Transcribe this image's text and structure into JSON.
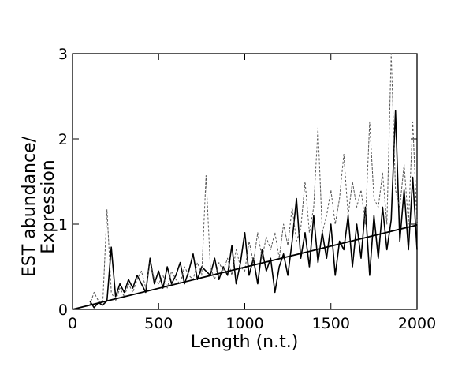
{
  "chart_data": {
    "type": "line",
    "x_label": "Length (n.t.)",
    "y_label_lines": [
      "EST abundance/",
      "Expression"
    ],
    "xlim": [
      0,
      2000
    ],
    "xticks": [
      0,
      500,
      1000,
      1500,
      2000
    ],
    "ylim": [
      0,
      3
    ],
    "yticks": [
      0,
      1,
      2,
      3
    ],
    "series": [
      {
        "color": "#000000",
        "style": "solid",
        "width": 1.6,
        "x": [
          100,
          125,
          150,
          175,
          200,
          225,
          250,
          275,
          300,
          325,
          350,
          375,
          400,
          425,
          450,
          475,
          500,
          525,
          550,
          575,
          600,
          625,
          650,
          675,
          700,
          725,
          750,
          775,
          800,
          825,
          850,
          875,
          900,
          925,
          950,
          975,
          1000,
          1025,
          1050,
          1075,
          1100,
          1125,
          1150,
          1175,
          1200,
          1225,
          1250,
          1275,
          1300,
          1325,
          1350,
          1375,
          1400,
          1425,
          1450,
          1475,
          1500,
          1525,
          1550,
          1575,
          1600,
          1625,
          1650,
          1675,
          1700,
          1725,
          1750,
          1775,
          1800,
          1825,
          1850,
          1875,
          1900,
          1925,
          1950,
          1975,
          2000
        ],
        "values": [
          0.1,
          0.02,
          0.08,
          0.05,
          0.1,
          0.73,
          0.15,
          0.3,
          0.2,
          0.35,
          0.25,
          0.4,
          0.3,
          0.2,
          0.6,
          0.3,
          0.45,
          0.25,
          0.5,
          0.3,
          0.4,
          0.55,
          0.3,
          0.45,
          0.65,
          0.35,
          0.5,
          0.45,
          0.4,
          0.6,
          0.35,
          0.5,
          0.4,
          0.75,
          0.3,
          0.55,
          0.9,
          0.4,
          0.6,
          0.3,
          0.7,
          0.45,
          0.6,
          0.2,
          0.5,
          0.65,
          0.4,
          0.8,
          1.3,
          0.6,
          0.9,
          0.5,
          1.1,
          0.55,
          0.9,
          0.6,
          1.0,
          0.4,
          0.8,
          0.7,
          1.1,
          0.5,
          1.0,
          0.6,
          1.2,
          0.4,
          1.1,
          0.6,
          1.2,
          0.7,
          1.05,
          2.33,
          0.8,
          1.4,
          0.7,
          1.55,
          0.7
        ]
      },
      {
        "color": "#555555",
        "style": "dashed",
        "width": 1,
        "x": [
          100,
          125,
          150,
          175,
          200,
          225,
          250,
          275,
          300,
          325,
          350,
          375,
          400,
          425,
          450,
          475,
          500,
          525,
          550,
          575,
          600,
          625,
          650,
          675,
          700,
          725,
          750,
          775,
          800,
          825,
          850,
          875,
          900,
          925,
          950,
          975,
          1000,
          1025,
          1050,
          1075,
          1100,
          1125,
          1150,
          1175,
          1200,
          1225,
          1250,
          1275,
          1300,
          1325,
          1350,
          1375,
          1400,
          1425,
          1450,
          1475,
          1500,
          1525,
          1550,
          1575,
          1600,
          1625,
          1650,
          1675,
          1700,
          1725,
          1750,
          1775,
          1800,
          1825,
          1850,
          1875,
          1900,
          1925,
          1950,
          1975,
          2000
        ],
        "values": [
          0.05,
          0.2,
          0.1,
          0.05,
          1.17,
          0.2,
          0.1,
          0.25,
          0.15,
          0.3,
          0.2,
          0.35,
          0.45,
          0.25,
          0.55,
          0.35,
          0.3,
          0.4,
          0.25,
          0.45,
          0.35,
          0.3,
          0.5,
          0.4,
          0.35,
          0.55,
          0.4,
          1.57,
          0.5,
          0.35,
          0.55,
          0.45,
          0.6,
          0.4,
          0.7,
          0.5,
          0.45,
          0.8,
          0.55,
          0.9,
          0.6,
          0.85,
          0.7,
          0.9,
          0.6,
          1.0,
          0.75,
          1.2,
          0.8,
          0.95,
          1.5,
          0.9,
          1.2,
          2.13,
          0.9,
          1.1,
          1.4,
          1.0,
          1.3,
          1.82,
          1.1,
          1.5,
          1.2,
          1.4,
          1.0,
          2.2,
          1.3,
          1.2,
          1.6,
          1.0,
          3.0,
          1.4,
          1.2,
          1.7,
          1.0,
          2.2,
          1.0
        ]
      },
      {
        "color": "#000000",
        "style": "solid",
        "width": 1.8,
        "x": [
          0,
          2000
        ],
        "values": [
          0,
          0.99
        ]
      }
    ]
  }
}
